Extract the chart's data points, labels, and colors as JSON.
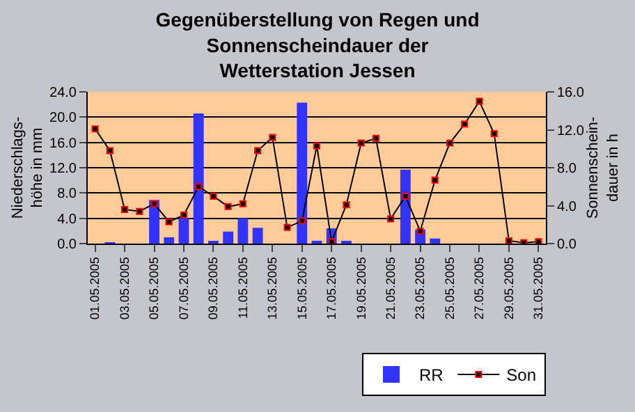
{
  "chart_data": {
    "type": "bar",
    "title": "Gegenüberstellung von Regen und\nSonnenscheindauer der\nWetterstation Jessen",
    "ylabel": "Niederschlags-\nhöhe in mm",
    "y2label": "Sonnenschein-\ndauer in h",
    "categories": [
      "01.05.2005",
      null,
      "03.05.2005",
      null,
      "05.05.2005",
      null,
      "07.05.2005",
      null,
      "09.05.2005",
      null,
      "11.05.2005",
      null,
      "13.05.2005",
      null,
      "15.05.2005",
      null,
      "17.05.2005",
      null,
      "19.05.2005",
      null,
      "21.05.2005",
      null,
      "23.05.2005",
      null,
      "25.05.2005",
      null,
      "27.05.2005",
      null,
      "29.05.2005",
      null,
      "31.05.2005"
    ],
    "series": [
      {
        "name": "RR",
        "color": "#3333ff",
        "values": [
          null,
          0.1,
          null,
          null,
          6.9,
          1.0,
          4.0,
          20.6,
          0.4,
          1.9,
          4.0,
          2.5,
          null,
          null,
          22.3,
          0.4,
          2.4,
          0.4,
          null,
          null,
          null,
          11.7,
          2.2,
          0.8,
          null,
          null,
          null,
          null,
          null,
          null,
          null
        ]
      },
      {
        "name": "Son",
        "type": "line",
        "axis": "y2",
        "color": "#000000",
        "marker": "square",
        "values": [
          12.1,
          9.8,
          3.6,
          3.4,
          4.2,
          2.3,
          3.0,
          6.0,
          5.0,
          3.9,
          4.2,
          9.8,
          11.2,
          1.7,
          2.4,
          10.3,
          0.2,
          4.1,
          10.6,
          11.1,
          2.6,
          5.0,
          1.3,
          6.7,
          10.6,
          12.6,
          15.0,
          11.6,
          0.3,
          0.1,
          0.2
        ]
      }
    ],
    "ylim": [
      0,
      24
    ],
    "yticks": [
      {
        "value": 0,
        "label": "0.0"
      },
      {
        "value": 4,
        "label": "4.0"
      },
      {
        "value": 8,
        "label": "8.0"
      },
      {
        "value": 12,
        "label": "12.0"
      },
      {
        "value": 16,
        "label": "16.0"
      },
      {
        "value": 20,
        "label": "20.0"
      },
      {
        "value": 24,
        "label": "24.0"
      }
    ],
    "y2lim": [
      0,
      16
    ],
    "y2ticks": [
      {
        "value": 0,
        "label": "0.0"
      },
      {
        "value": 4,
        "label": "4.0"
      },
      {
        "value": 8,
        "label": "8.0"
      },
      {
        "value": 12,
        "label": "12.0"
      },
      {
        "value": 16,
        "label": "16.0"
      }
    ],
    "grid": "y",
    "legend": "bottom right"
  }
}
